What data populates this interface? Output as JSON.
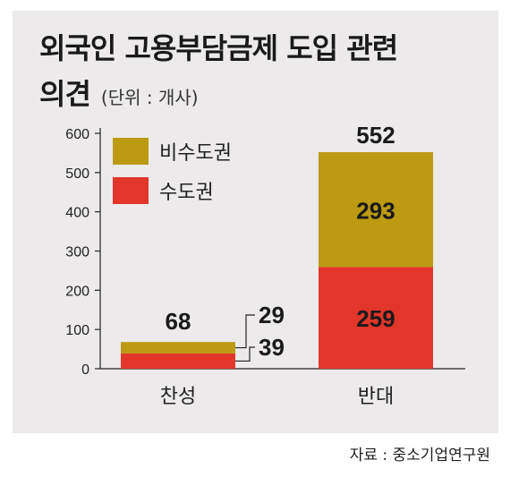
{
  "title": "외국인 고용부담금제 도입 관련",
  "subtitle": "의견",
  "unit": "(단위 : 개사)",
  "source": "자료 : 중소기업연구원",
  "colors": {
    "비수도권": "#bc9a11",
    "수도권": "#e3362b"
  },
  "chart_data": {
    "type": "bar",
    "stacked": true,
    "categories": [
      "찬성",
      "반대"
    ],
    "series": [
      {
        "name": "수도권",
        "values": [
          39,
          259
        ]
      },
      {
        "name": "비수도권",
        "values": [
          29,
          293
        ]
      }
    ],
    "totals": [
      68,
      552
    ],
    "ylim": [
      0,
      600
    ],
    "yticks": [
      0,
      100,
      200,
      300,
      400,
      500,
      600
    ],
    "legend": [
      "비수도권",
      "수도권"
    ],
    "legend_position": "top-left",
    "grid": false
  }
}
